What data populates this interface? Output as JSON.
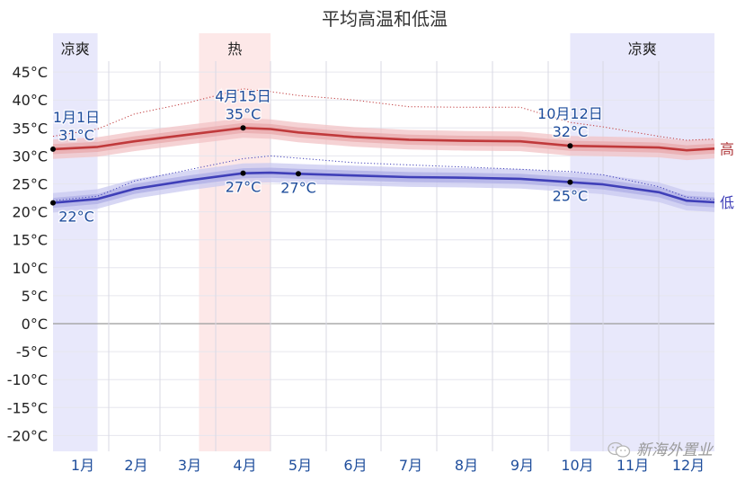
{
  "chart_data": {
    "type": "line",
    "title": "平均高温和低温",
    "xlabel": "",
    "ylabel": "",
    "ylim": [
      -22.5,
      47
    ],
    "y_ticks": [
      "45°C",
      "40°C",
      "35°C",
      "30°C",
      "25°C",
      "20°C",
      "15°C",
      "10°C",
      "5°C",
      "0°C",
      "-5°C",
      "-10°C",
      "-15°C",
      "-20°C"
    ],
    "y_tick_values": [
      45,
      40,
      35,
      30,
      25,
      20,
      15,
      10,
      5,
      0,
      -5,
      -10,
      -15,
      -20
    ],
    "categories": [
      "1月",
      "2月",
      "3月",
      "4月",
      "5月",
      "6月",
      "7月",
      "8月",
      "9月",
      "10月",
      "11月",
      "12月"
    ],
    "grid": true,
    "seasons": [
      {
        "label": "凉爽",
        "start_month": 1.0,
        "end_month": 1.8,
        "color": "#e8e8fb"
      },
      {
        "label": "热",
        "start_month": 3.7,
        "end_month": 5.0,
        "color": "#fde8e8"
      },
      {
        "label": "凉爽",
        "start_month": 10.4,
        "end_month": 13.0,
        "color": "#e8e8fb"
      }
    ],
    "series": [
      {
        "name": "高",
        "color": "#c0393b",
        "x": [
          1.0,
          1.8,
          2.5,
          3.5,
          4.5,
          5.0,
          5.5,
          6.5,
          7.5,
          8.5,
          9.5,
          10.4,
          11.0,
          12.0,
          12.5,
          13.0
        ],
        "values": [
          31.2,
          31.6,
          32.6,
          33.8,
          35.0,
          34.8,
          34.2,
          33.4,
          32.9,
          32.7,
          32.6,
          31.8,
          31.7,
          31.5,
          31.0,
          31.3
        ],
        "band_outer_width": 3.5,
        "band_inner_width": 1.8,
        "record_dotted": [
          33.5,
          34.8,
          37.5,
          39.5,
          42.0,
          41.5,
          40.8,
          40.0,
          38.8,
          38.7,
          38.7,
          36.0,
          35.2,
          33.5,
          32.8,
          33.0
        ]
      },
      {
        "name": "低",
        "color": "#3f3fb8",
        "x": [
          1.0,
          1.8,
          2.5,
          3.5,
          4.5,
          5.0,
          5.5,
          6.5,
          7.5,
          8.5,
          9.5,
          10.4,
          11.0,
          12.0,
          12.5,
          13.0
        ],
        "values": [
          21.6,
          22.3,
          24.1,
          25.6,
          26.9,
          27.0,
          26.8,
          26.5,
          26.2,
          26.1,
          25.9,
          25.3,
          24.9,
          23.5,
          22.0,
          21.7
        ],
        "band_outer_width": 3.5,
        "band_inner_width": 1.8,
        "record_dotted": [
          22.0,
          22.8,
          25.5,
          27.5,
          29.5,
          30.0,
          29.6,
          28.8,
          28.4,
          28.0,
          27.6,
          27.2,
          26.6,
          24.5,
          22.6,
          22.2
        ]
      }
    ],
    "annotations": [
      {
        "series": "高",
        "date": "1月1日",
        "value": "31°C",
        "month": 1.0,
        "y": 31.2
      },
      {
        "series": "高",
        "date": "4月15日",
        "value": "35°C",
        "month": 4.5,
        "y": 35.0
      },
      {
        "series": "高",
        "date": "10月12日",
        "value": "32°C",
        "month": 10.4,
        "y": 31.8
      },
      {
        "series": "低",
        "date": "",
        "value": "22°C",
        "month": 1.0,
        "y": 21.6
      },
      {
        "series": "低",
        "date": "",
        "value": "27°C",
        "month": 4.5,
        "y": 26.9
      },
      {
        "series": "低",
        "date": "",
        "value": "27°C",
        "month": 5.5,
        "y": 26.8
      },
      {
        "series": "低",
        "date": "",
        "value": "25°C",
        "month": 10.4,
        "y": 25.3
      }
    ],
    "legend_position": "right-inline"
  },
  "watermark": {
    "text": "新海外置业",
    "icon": "wechat-icon"
  }
}
